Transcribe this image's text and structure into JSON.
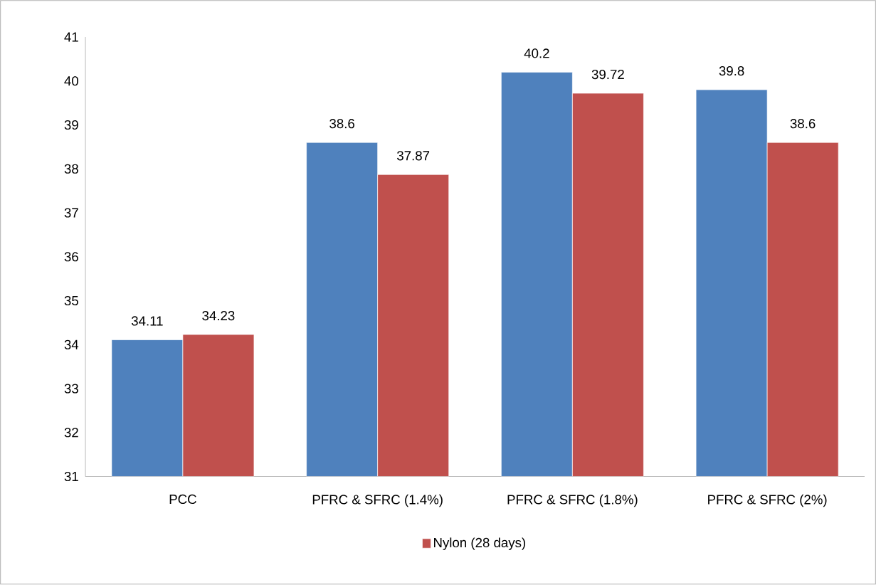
{
  "chart_data": {
    "type": "bar",
    "categories": [
      "PCC",
      "PFRC & SFRC (1.4%)",
      "PFRC & SFRC (1.8%)",
      "PFRC & SFRC (2%)"
    ],
    "series": [
      {
        "color": "#4f81bd",
        "values": [
          34.11,
          38.6,
          40.2,
          39.8
        ]
      },
      {
        "name": "Nylon (28 days)",
        "color": "#c0504d",
        "values": [
          34.23,
          37.87,
          39.72,
          38.6
        ]
      }
    ],
    "ylim": [
      31,
      41
    ],
    "yticks": [
      31,
      32,
      33,
      34,
      35,
      36,
      37,
      38,
      39,
      40,
      41
    ],
    "data_labels": true,
    "legend": "bottom",
    "grid": false
  }
}
